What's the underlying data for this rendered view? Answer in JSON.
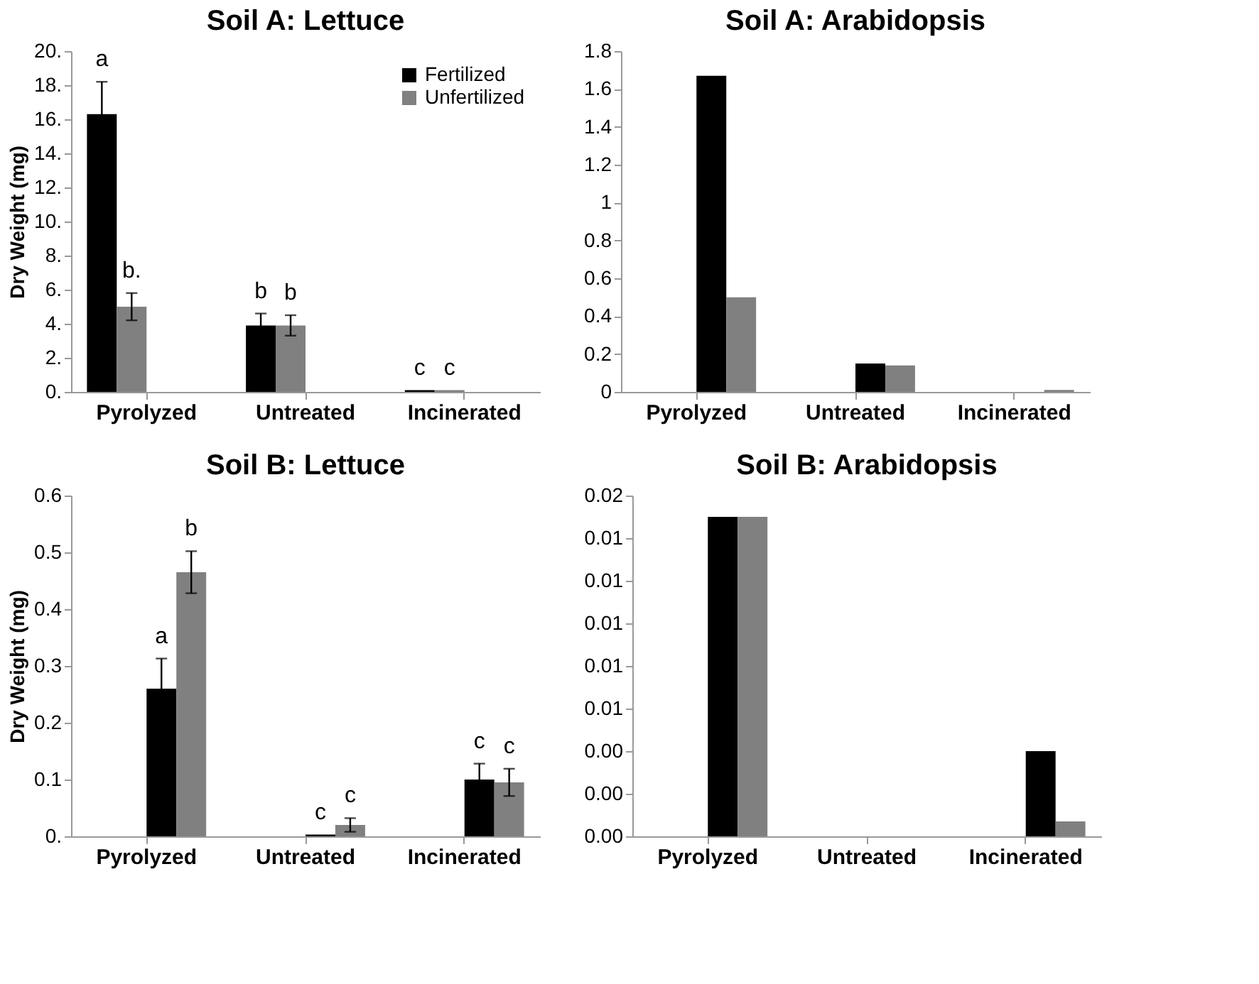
{
  "chart_data": [
    {
      "type": "bar",
      "title": "Soil A: Lettuce",
      "ylabel": "Dry Weight (mg)",
      "categories": [
        "Pyrolyzed",
        "Untreated",
        "Incinerated"
      ],
      "series": [
        {
          "name": "Fertilized",
          "color": "#000000",
          "values": [
            16.3,
            3.9,
            0.1
          ],
          "errors": [
            1.9,
            0.7,
            null
          ]
        },
        {
          "name": "Unfertilized",
          "color": "#808080",
          "values": [
            5.0,
            3.9,
            0.1
          ],
          "errors": [
            0.8,
            0.6,
            null
          ]
        }
      ],
      "ylim": [
        0,
        20
      ],
      "yticks": [
        {
          "value": 0,
          "label": "0."
        },
        {
          "value": 2,
          "label": "2."
        },
        {
          "value": 4,
          "label": "4."
        },
        {
          "value": 6,
          "label": "6."
        },
        {
          "value": 8,
          "label": "8."
        },
        {
          "value": 10,
          "label": "10."
        },
        {
          "value": 12,
          "label": "12."
        },
        {
          "value": 14,
          "label": "14."
        },
        {
          "value": 16,
          "label": "16."
        },
        {
          "value": 18,
          "label": "18."
        },
        {
          "value": 20,
          "label": "20."
        }
      ],
      "annotations": [
        "a",
        "b.",
        "b",
        "b",
        "c",
        "c"
      ],
      "legend": "top right",
      "grid": false
    },
    {
      "type": "bar",
      "title": "Soil A: Arabidopsis",
      "categories": [
        "Pyrolyzed",
        "Untreated",
        "Incinerated"
      ],
      "series": [
        {
          "color": "#000000",
          "values": [
            1.67,
            0.15,
            0
          ]
        },
        {
          "color": "#808080",
          "values": [
            0.5,
            0.14,
            0.01
          ]
        }
      ],
      "ylim": [
        0,
        1.8
      ],
      "yticks": [
        {
          "value": 0,
          "label": "0"
        },
        0.2,
        0.4,
        0.6,
        0.8,
        {
          "value": 1,
          "label": "1"
        },
        1.2,
        1.4,
        1.6,
        1.8
      ],
      "grid": false
    },
    {
      "type": "bar",
      "title": "Soil B: Lettuce",
      "ylabel": "Dry Weight (mg)",
      "categories": [
        "Pyrolyzed",
        "Untreated",
        "Incinerated"
      ],
      "series": [
        {
          "color": "#000000",
          "values": [
            0.26,
            0.003,
            0.1
          ],
          "errors": [
            0.053,
            null,
            0.028
          ]
        },
        {
          "color": "#808080",
          "values": [
            0.465,
            0.02,
            0.095
          ],
          "errors": [
            0.037,
            0.012,
            0.024
          ]
        }
      ],
      "ylim": [
        0,
        0.6
      ],
      "yticks": [
        {
          "value": 0,
          "label": "0."
        },
        0.1,
        0.2,
        0.3,
        0.4,
        0.5,
        0.6
      ],
      "annotations": [
        "a",
        "b",
        "c",
        "c",
        "c",
        "c"
      ],
      "grid": false
    },
    {
      "type": "bar",
      "title": "Soil B: Arabidopsis",
      "categories": [
        "Pyrolyzed",
        "Untreated",
        "Incinerated"
      ],
      "series": [
        {
          "color": "#000000",
          "values": [
            0.015,
            0,
            0.004
          ]
        },
        {
          "color": "#808080",
          "values": [
            0.015,
            0,
            0.0007
          ]
        }
      ],
      "ylim": [
        0,
        0.016
      ],
      "yticks": [
        {
          "value": 0,
          "label": "0.00"
        },
        {
          "value": 0.002,
          "label": "0.00"
        },
        {
          "value": 0.004,
          "label": "0.00"
        },
        {
          "value": 0.006,
          "label": "0.01"
        },
        {
          "value": 0.008,
          "label": "0.01"
        },
        {
          "value": 0.01,
          "label": "0.01"
        },
        {
          "value": 0.012,
          "label": "0.01"
        },
        {
          "value": 0.014,
          "label": "0.01"
        },
        {
          "value": 0.016,
          "label": "0.02"
        }
      ],
      "grid": false
    }
  ]
}
